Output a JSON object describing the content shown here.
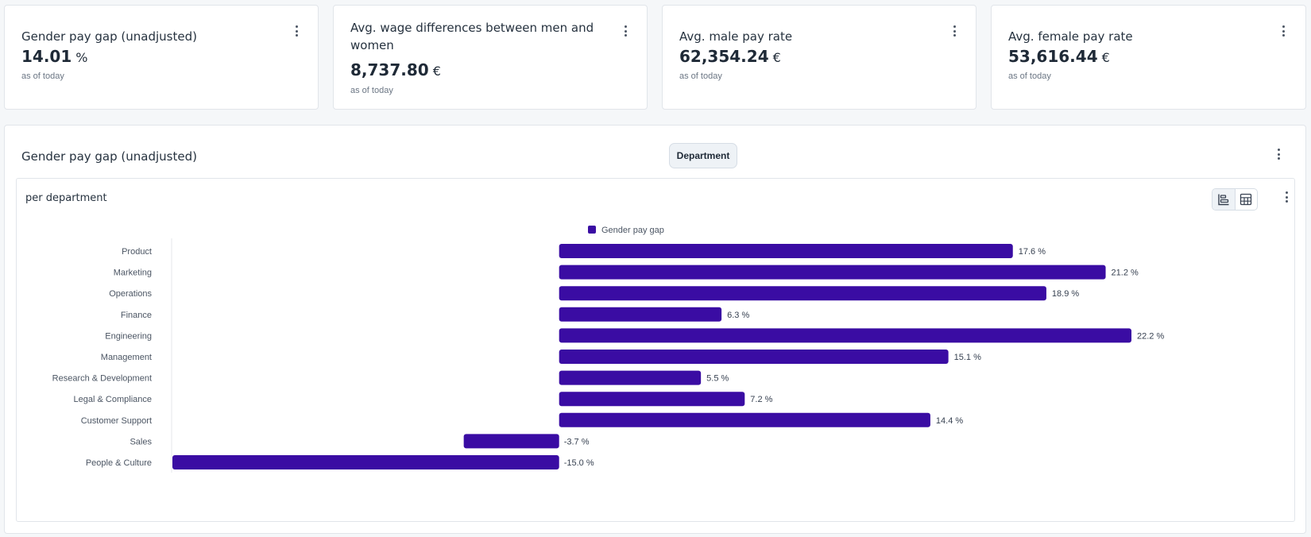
{
  "kpis": [
    {
      "title": "Gender pay gap (unadjusted)",
      "value": "14.01",
      "unit": "%",
      "sub": "as of today"
    },
    {
      "title": "Avg. wage differences between men and women",
      "value": "8,737.80",
      "unit": "€",
      "sub": "as of today"
    },
    {
      "title": "Avg. male pay rate",
      "value": "62,354.24",
      "unit": "€",
      "sub": "as of today"
    },
    {
      "title": "Avg. female pay rate",
      "value": "53,616.44",
      "unit": "€",
      "sub": "as of today"
    }
  ],
  "section": {
    "title": "Gender pay gap (unadjusted)",
    "chip": "Department",
    "inner_title": "per department"
  },
  "colors": {
    "bar": "#3a0ca3"
  },
  "chart_data": {
    "type": "bar",
    "orientation": "horizontal",
    "legend": "Gender pay gap",
    "legend_position": "top",
    "value_suffix": " %",
    "categories": [
      "Product",
      "Marketing",
      "Operations",
      "Finance",
      "Engineering",
      "Management",
      "Research & Development",
      "Legal & Compliance",
      "Customer Support",
      "Sales",
      "People & Culture"
    ],
    "values": [
      17.6,
      21.2,
      18.9,
      6.3,
      22.2,
      15.1,
      5.5,
      7.2,
      14.4,
      -3.7,
      -15.0
    ],
    "labels": [
      "17.6 %",
      "21.2 %",
      "18.9 %",
      "6.3 %",
      "22.2 %",
      "15.1 %",
      "5.5 %",
      "7.2 %",
      "14.4 %",
      "-3.7 %",
      "-15.0 %"
    ],
    "xlim": [
      -15,
      22.2
    ],
    "grid": false
  }
}
